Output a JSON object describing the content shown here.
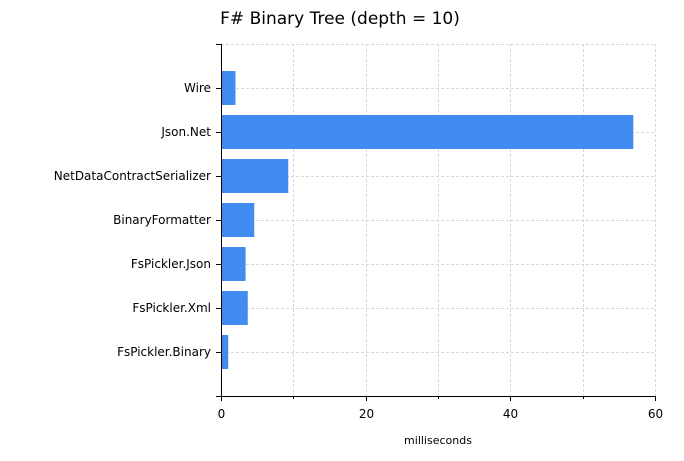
{
  "chart_data": {
    "type": "bar",
    "orientation": "horizontal",
    "title": "F# Binary Tree (depth = 10)",
    "xlabel": "milliseconds",
    "ylabel": "",
    "xlim": [
      0,
      60
    ],
    "xticks": [
      0,
      20,
      40,
      60
    ],
    "grid": true,
    "bar_color": "#418cf0",
    "categories": [
      "Wire",
      "Json.Net",
      "NetDataContractSerializer",
      "BinaryFormatter",
      "FsPickler.Json",
      "FsPickler.Xml",
      "FsPickler.Binary"
    ],
    "values": [
      2.0,
      57.0,
      9.3,
      4.6,
      3.4,
      3.7,
      1.0
    ]
  }
}
